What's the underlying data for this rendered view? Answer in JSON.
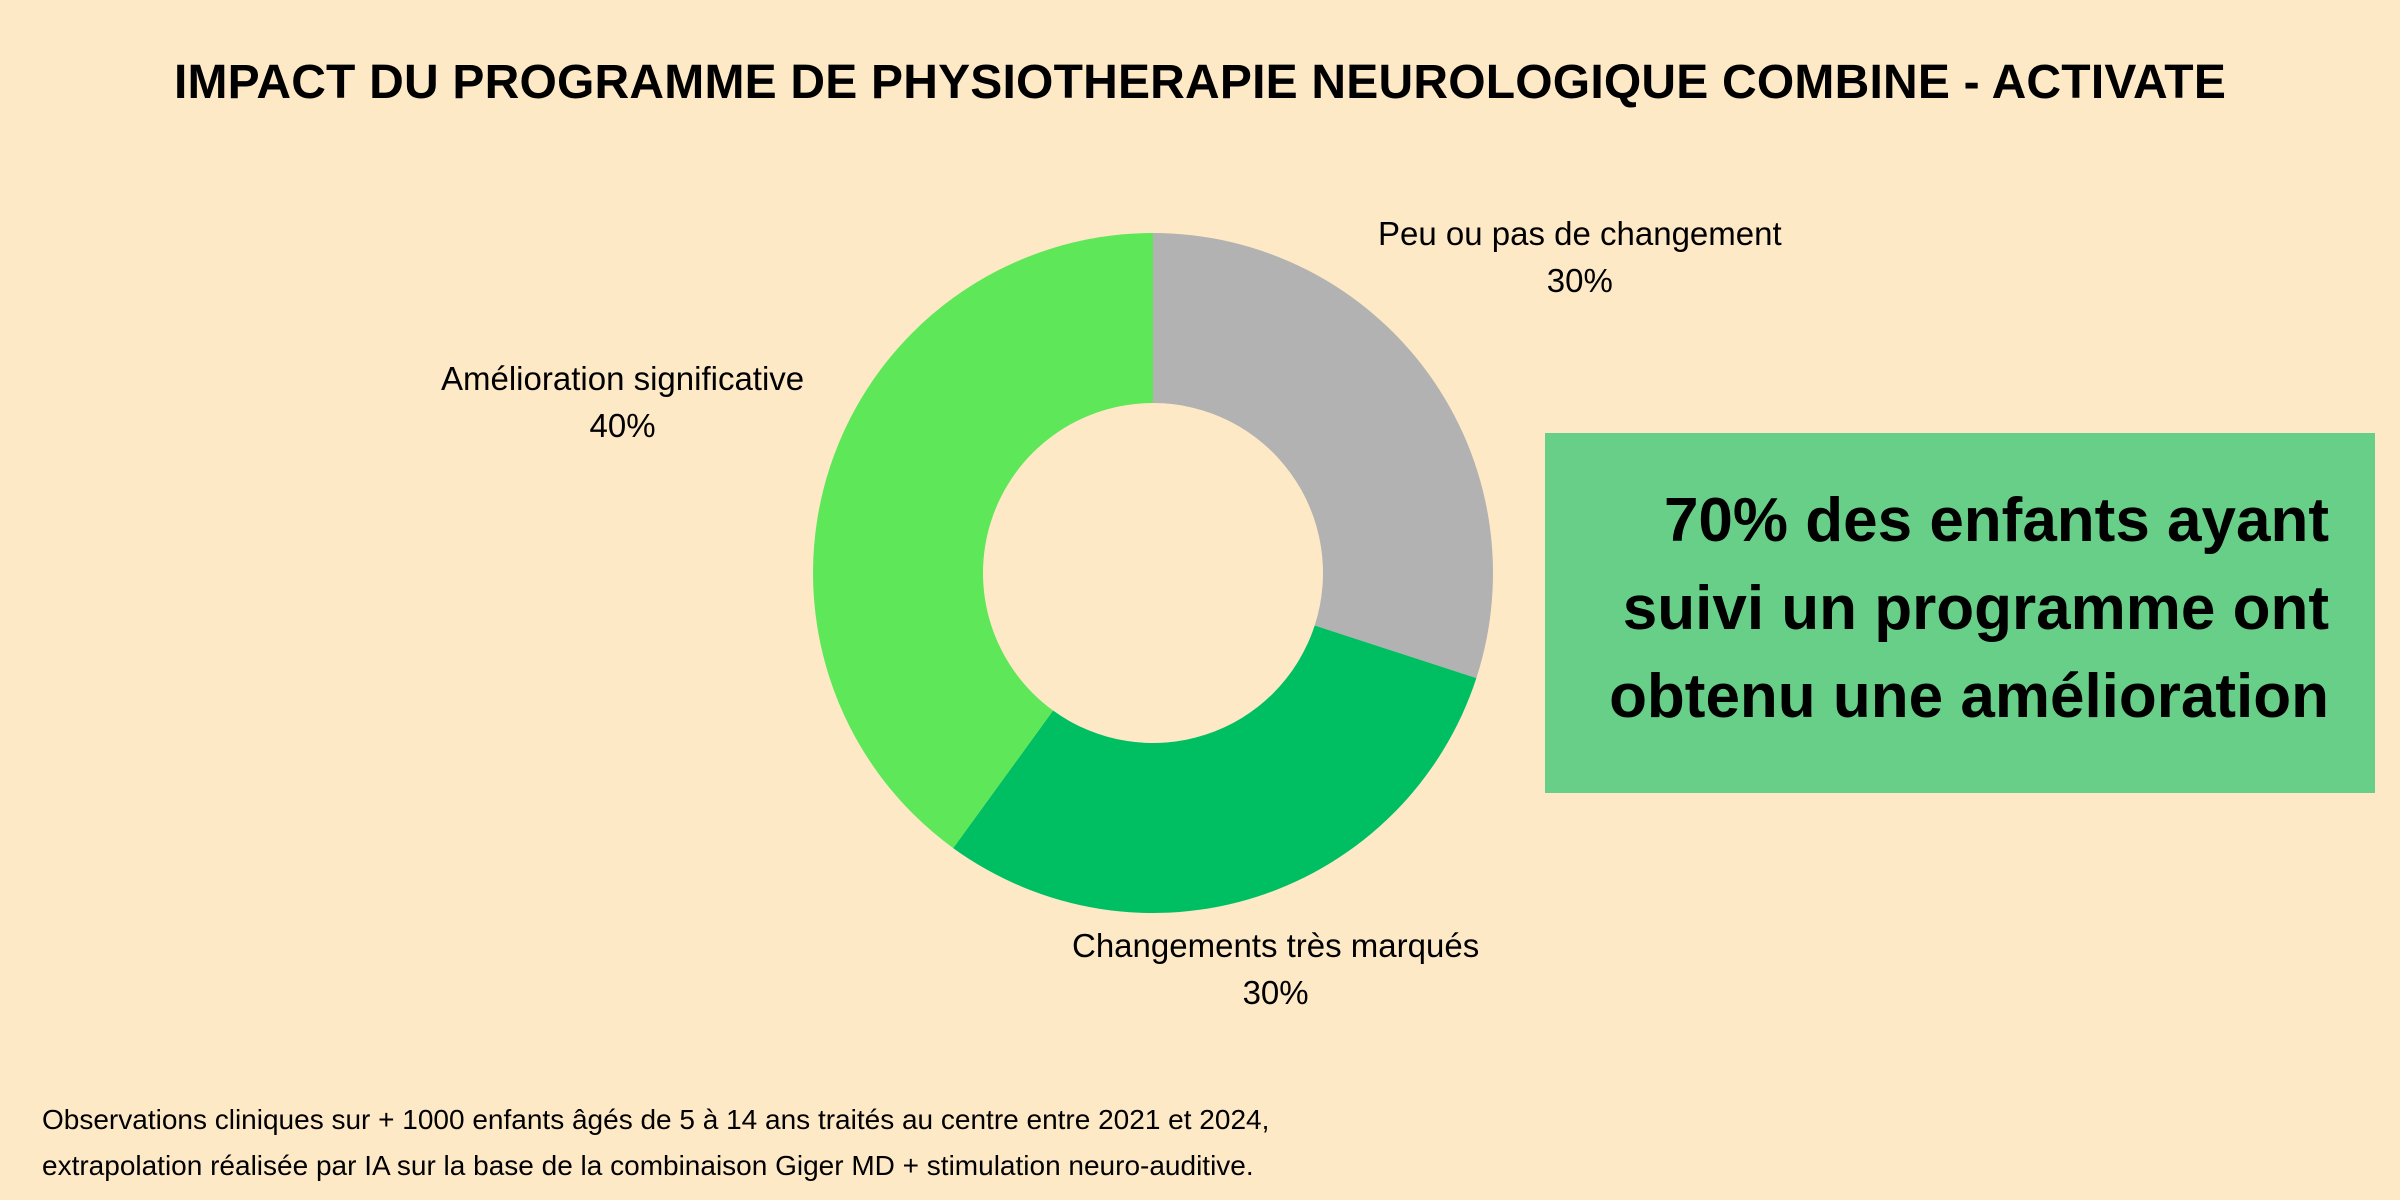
{
  "title": "IMPACT DU PROGRAMME DE PHYSIOTHERAPIE NEUROLOGIQUE COMBINE - ACTIVATE",
  "chart_data": {
    "type": "pie",
    "style": "donut",
    "title": "IMPACT DU PROGRAMME DE PHYSIOTHERAPIE NEUROLOGIQUE COMBINE - ACTIVATE",
    "slices": [
      {
        "label": "Peu ou pas de changement",
        "value": 30,
        "value_label": "30%",
        "color": "#B2B2B2"
      },
      {
        "label": "Changements très marqués",
        "value": 30,
        "value_label": "30%",
        "color": "#00BF63"
      },
      {
        "label": "Amélioration significative",
        "value": 40,
        "value_label": "40%",
        "color": "#5FE75A"
      }
    ],
    "start_angle": "12 o'clock, clockwise"
  },
  "callout": {
    "line1": "70% des enfants ayant",
    "line2": "suivi un programme ont",
    "line3": "obtenu une amélioration",
    "background": "#67CF88"
  },
  "footnote": {
    "line1": "Observations cliniques sur + 1000 enfants âgés de 5 à 14 ans traités au centre entre 2021 et 2024,",
    "line2": "extrapolation réalisée par IA sur la base de la combinaison Giger MD + stimulation neuro-auditive."
  },
  "colors": {
    "background": "#FEE9C6",
    "text": "#000000"
  }
}
